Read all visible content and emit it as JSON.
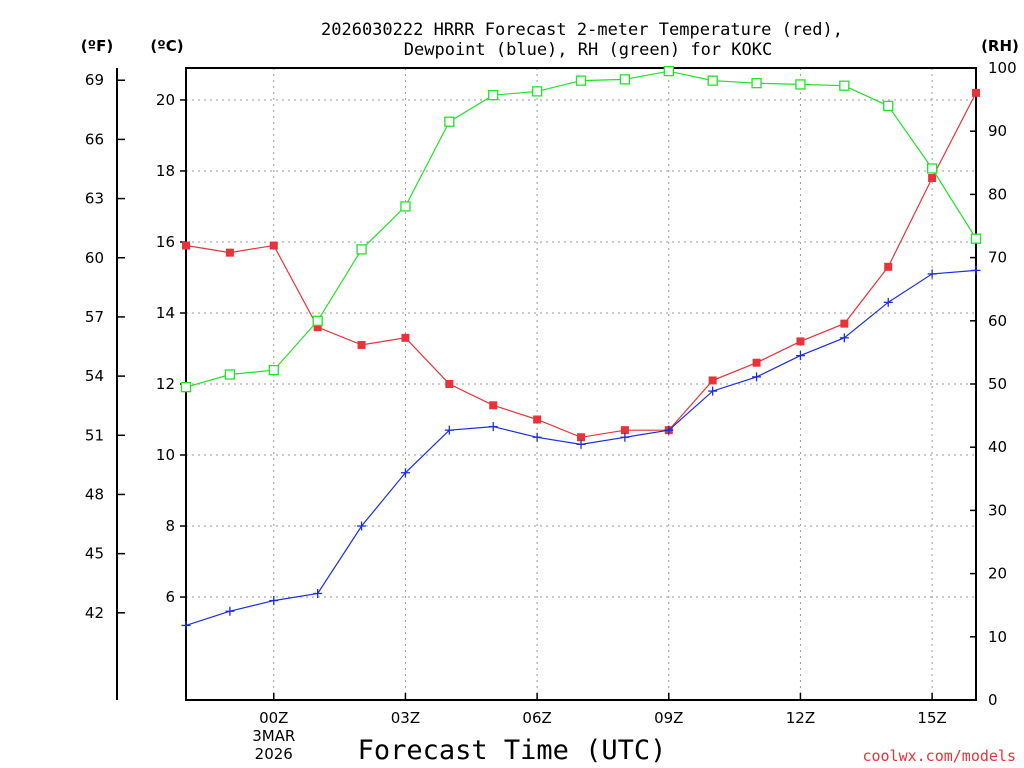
{
  "chart_data": {
    "type": "line",
    "title_line1": "2026030222 HRRR Forecast 2-meter Temperature (red),",
    "title_line2": "Dewpoint (blue), RH (green) for KOKC",
    "xlabel": "Forecast Time (UTC)",
    "credit": "coolwx.com/models",
    "x_hours": [
      22,
      23,
      24,
      25,
      26,
      27,
      28,
      29,
      30,
      31,
      32,
      33,
      34,
      35,
      36,
      37,
      38,
      39,
      40
    ],
    "xlim": [
      22,
      40
    ],
    "x_ticks": [
      {
        "hour": 24,
        "label": "00Z",
        "label2": "3MAR",
        "label3": "2026"
      },
      {
        "hour": 27,
        "label": "03Z"
      },
      {
        "hour": 30,
        "label": "06Z"
      },
      {
        "hour": 33,
        "label": "09Z"
      },
      {
        "hour": 36,
        "label": "12Z"
      },
      {
        "hour": 39,
        "label": "15Z"
      }
    ],
    "celsius_axis": {
      "unit_label": "(ºC)",
      "range": [
        3.1,
        20.9
      ],
      "ticks": [
        6,
        8,
        10,
        12,
        14,
        16,
        18,
        20
      ]
    },
    "fahrenheit_axis": {
      "unit_label": "(ºF)",
      "ticks": [
        42,
        45,
        48,
        51,
        54,
        57,
        60,
        63,
        66,
        69
      ]
    },
    "rh_axis": {
      "unit_label": "(RH)",
      "range": [
        0,
        100
      ],
      "ticks": [
        0,
        10,
        20,
        30,
        40,
        50,
        60,
        70,
        80,
        90,
        100
      ]
    },
    "series": [
      {
        "name": "Temperature",
        "axis": "celsius",
        "color": "#e8333a",
        "marker": "filled-square",
        "values": [
          15.9,
          15.7,
          15.9,
          13.6,
          13.1,
          13.3,
          12.0,
          11.4,
          11.0,
          10.5,
          10.7,
          10.7,
          12.1,
          12.6,
          13.2,
          13.7,
          15.3,
          17.8,
          20.2
        ]
      },
      {
        "name": "Dewpoint",
        "axis": "celsius",
        "color": "#1a2ee0",
        "marker": "plus",
        "values": [
          5.2,
          5.6,
          5.9,
          6.1,
          8.0,
          9.5,
          10.7,
          10.8,
          10.5,
          10.3,
          10.5,
          10.7,
          11.8,
          12.2,
          12.8,
          13.3,
          14.3,
          15.1,
          15.2
        ]
      },
      {
        "name": "RH",
        "axis": "rh",
        "color": "#22e22a",
        "marker": "open-square",
        "values": [
          49.5,
          51.5,
          52.2,
          60.0,
          71.3,
          78.1,
          91.5,
          95.7,
          96.3,
          98.0,
          98.2,
          99.5,
          98.0,
          97.6,
          97.4,
          97.2,
          94.0,
          84.1,
          73.0
        ]
      }
    ],
    "grid": true
  }
}
